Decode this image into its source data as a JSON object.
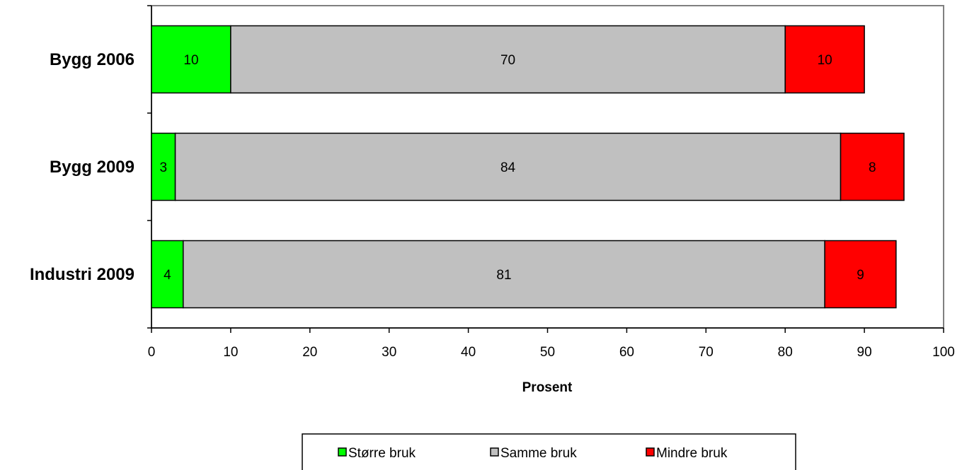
{
  "chart_data": {
    "type": "bar",
    "orientation": "horizontal",
    "stacked": true,
    "categories": [
      "Bygg 2006",
      "Bygg 2009",
      "Industri 2009"
    ],
    "series": [
      {
        "name": "Større bruk",
        "color": "#00ff00",
        "values": [
          10,
          3,
          4
        ]
      },
      {
        "name": "Samme bruk",
        "color": "#c0c0c0",
        "values": [
          70,
          84,
          81
        ]
      },
      {
        "name": "Mindre bruk",
        "color": "#ff0000",
        "values": [
          10,
          8,
          9
        ]
      }
    ],
    "value_labels": [
      [
        "10",
        "70",
        "10"
      ],
      [
        "3",
        "84",
        "8"
      ],
      [
        "4",
        "81",
        "9"
      ]
    ],
    "xlabel": "Prosent",
    "xlim": [
      0,
      100
    ],
    "xticks": [
      "0",
      "10",
      "20",
      "30",
      "40",
      "50",
      "60",
      "70",
      "80",
      "90",
      "100"
    ],
    "grid": false,
    "legend_position": "bottom"
  }
}
